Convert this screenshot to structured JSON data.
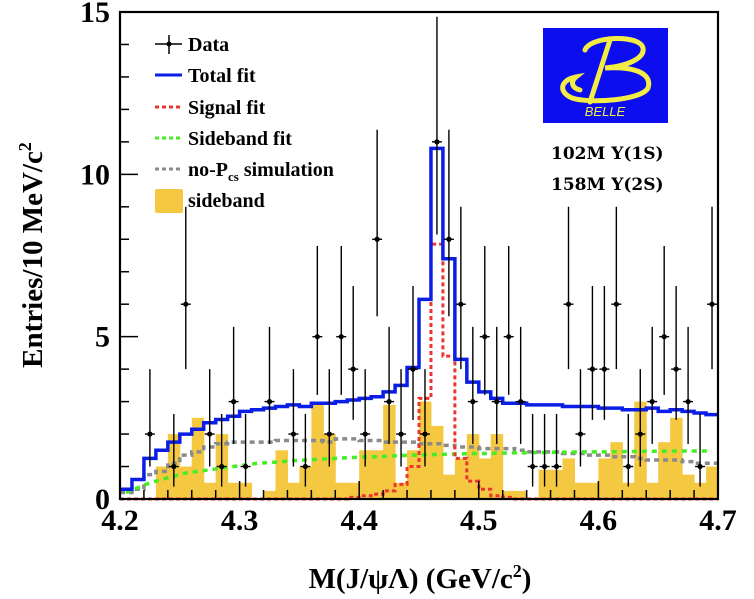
{
  "chart_data": {
    "type": "bar",
    "title": "",
    "xlabel": "M(J/ψΛ) (GeV/c²)",
    "xlabel_parts": {
      "main": "M(J/ψΛ) (GeV/c",
      "sup": "2",
      "end": ")"
    },
    "ylabel": "Entries/10 MeV/c²",
    "ylabel_parts": {
      "main": "Entries/10 MeV/c",
      "sup": "2"
    },
    "xlim": [
      4.2,
      4.7
    ],
    "ylim": [
      0,
      15
    ],
    "bin_width": 0.01,
    "x_ticks": [
      "4.2",
      "4.3",
      "4.4",
      "4.5",
      "4.6",
      "4.7"
    ],
    "x_tick_values": [
      4.2,
      4.3,
      4.4,
      4.5,
      4.6,
      4.7
    ],
    "y_ticks": [
      "0",
      "5",
      "10",
      "15"
    ],
    "y_tick_values": [
      0,
      5,
      10,
      15
    ],
    "grid": false,
    "legend_position": "top-left",
    "legend": [
      {
        "key": "data",
        "label": "Data",
        "style": "points-errorbars",
        "color": "#000000"
      },
      {
        "key": "total",
        "label": "Total fit",
        "style": "solid",
        "color": "#0a1ee6"
      },
      {
        "key": "signal",
        "label": "Signal fit",
        "style": "dashed",
        "color": "#ee3333"
      },
      {
        "key": "sideband_fit",
        "label": "Sideband fit",
        "style": "dashed",
        "color": "#44ee22"
      },
      {
        "key": "nopcs",
        "label": "no-P",
        "label_sub": "cs",
        "label_end": " simulation",
        "style": "dashed",
        "color": "#8a8a8a"
      },
      {
        "key": "sideband",
        "label": "sideband",
        "style": "filled",
        "color": "#f5c842"
      }
    ],
    "annotations": [
      "102M Υ(1S)",
      "158M Υ(2S)"
    ],
    "logo_text": "BELLE",
    "series": [
      {
        "name": "Data",
        "type": "points",
        "values": [
          0,
          0,
          2,
          0,
          1,
          6,
          0,
          2,
          1,
          3,
          1,
          0,
          3,
          0,
          2,
          1,
          5,
          2,
          5,
          4,
          2,
          8,
          3,
          2,
          4,
          2,
          11,
          8,
          6,
          3,
          5,
          3,
          5,
          3,
          1,
          1,
          1,
          6,
          2,
          4,
          4,
          6,
          1,
          2,
          3,
          5,
          4,
          3,
          1,
          6
        ]
      },
      {
        "name": "Total fit",
        "type": "step",
        "values": [
          0.3,
          0.6,
          1.25,
          1.5,
          1.75,
          2.0,
          2.15,
          2.35,
          2.45,
          2.55,
          2.7,
          2.75,
          2.8,
          2.85,
          2.9,
          2.85,
          2.95,
          2.95,
          3.0,
          3.05,
          3.1,
          3.15,
          3.3,
          3.5,
          4.05,
          6.15,
          10.8,
          7.4,
          4.3,
          3.6,
          3.3,
          3.1,
          2.95,
          2.95,
          2.9,
          2.9,
          2.9,
          2.85,
          2.85,
          2.85,
          2.8,
          2.8,
          2.75,
          2.75,
          2.8,
          2.7,
          2.75,
          2.7,
          2.65,
          2.6
        ]
      },
      {
        "name": "Signal fit",
        "type": "step",
        "values": [
          0,
          0,
          0,
          0,
          0,
          0,
          0,
          0,
          0,
          0,
          0,
          0,
          0,
          0,
          0,
          0,
          0,
          0,
          0,
          0.05,
          0.1,
          0.15,
          0.25,
          0.45,
          1.0,
          3.1,
          7.85,
          4.4,
          1.25,
          0.55,
          0.3,
          0.1,
          0.05,
          0,
          0,
          0,
          0,
          0,
          0,
          0,
          0,
          0,
          0,
          0,
          0,
          0,
          0,
          0,
          0,
          0
        ]
      },
      {
        "name": "Sideband fit",
        "type": "smooth",
        "values": [
          0.2,
          0.35,
          0.5,
          0.6,
          0.7,
          0.8,
          0.85,
          0.9,
          0.95,
          1.0,
          1.05,
          1.1,
          1.12,
          1.15,
          1.18,
          1.2,
          1.22,
          1.24,
          1.26,
          1.28,
          1.3,
          1.3,
          1.32,
          1.34,
          1.35,
          1.36,
          1.37,
          1.38,
          1.39,
          1.4,
          1.4,
          1.41,
          1.42,
          1.42,
          1.43,
          1.43,
          1.44,
          1.44,
          1.45,
          1.45,
          1.45,
          1.46,
          1.46,
          1.47,
          1.47,
          1.47,
          1.48,
          1.48,
          1.48,
          1.48
        ]
      },
      {
        "name": "no-Pcs simulation",
        "type": "step",
        "values": [
          0.2,
          0.3,
          0.75,
          0.85,
          1.1,
          1.35,
          1.45,
          1.6,
          1.7,
          1.75,
          1.75,
          1.75,
          1.75,
          1.8,
          1.8,
          1.8,
          1.8,
          1.75,
          1.85,
          1.85,
          1.8,
          1.8,
          1.75,
          1.75,
          1.75,
          1.7,
          1.7,
          1.65,
          1.6,
          1.6,
          1.55,
          1.55,
          1.55,
          1.5,
          1.45,
          1.45,
          1.45,
          1.4,
          1.4,
          1.35,
          1.35,
          1.3,
          1.3,
          1.25,
          1.2,
          1.2,
          1.2,
          1.15,
          1.1,
          1.1
        ]
      },
      {
        "name": "sideband",
        "type": "histogram",
        "values": [
          0,
          0,
          0,
          1.0,
          2.0,
          1.0,
          2.5,
          0.5,
          2.0,
          0.5,
          0.5,
          0,
          0.25,
          1.5,
          0.5,
          1.0,
          2.9,
          2.0,
          0.5,
          0.5,
          1.5,
          1.5,
          2.9,
          0.5,
          1.5,
          3.0,
          2.25,
          0.75,
          1.25,
          2.0,
          1.25,
          2.0,
          0.25,
          0.25,
          0,
          0.9,
          0.9,
          1.25,
          0.5,
          0.5,
          1.25,
          1.75,
          0.5,
          3.0,
          0.5,
          1.75,
          2.5,
          0.75,
          0.5,
          1.0
        ]
      }
    ]
  }
}
